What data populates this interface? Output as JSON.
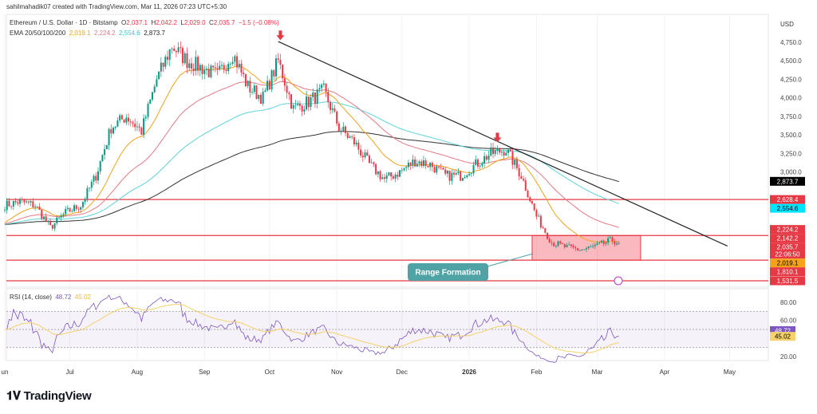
{
  "header": {
    "credit": "sahilmahadik07 created with TradingView.com, Mar 11, 2026 07:23 UTC+5:30",
    "symbol": "Ethereum / U.S. Dollar · 1D · Bitstamp",
    "o_label": "O",
    "o": "2,037.1",
    "h_label": "H",
    "h": "2,042.2",
    "l_label": "L",
    "l": "2,029.0",
    "c_label": "C",
    "c": "2,035.7",
    "change": "−1.5 (−0.08%)",
    "ema_label": "EMA 20/50/100/200",
    "ema_values": [
      "2,019.1",
      "2,224.2",
      "2,554.6",
      "2,873.7"
    ]
  },
  "currency": "USD",
  "colors": {
    "up": "#089981",
    "down": "#f23645",
    "ema20": "#f7a21b",
    "ema50": "#e57a86",
    "ema100": "#5fd3dc",
    "ema200": "#333333",
    "level": "#e53945",
    "rsi": "#7e57c2",
    "rsi_ma": "#f5d26b",
    "annotation": "#4fa3a5"
  },
  "price_axis": [
    "4,750.0",
    "4,500.0",
    "4,250.0",
    "4,000.0",
    "3,750.0",
    "3,500.0",
    "3,250.0",
    "3,000.0"
  ],
  "price_tags": [
    {
      "value": "2,873.7",
      "price": 2873.7,
      "bg": "#000000",
      "fg": "#ffffff"
    },
    {
      "value": "2,628.4",
      "price": 2628.4,
      "bg": "#e53945",
      "fg": "#ffffff"
    },
    {
      "value": "2,554.6",
      "price": 2554.6,
      "bg": "#00e5ff",
      "fg": "#000000"
    },
    {
      "value": "2,224.2",
      "price": 2224.2,
      "bg": "#e53945",
      "fg": "#ffffff"
    },
    {
      "value": "2,142.2",
      "price": 2142.2,
      "bg": "#e53945",
      "fg": "#ffffff"
    },
    {
      "value": "2,035.7",
      "price": 2035.7,
      "bg": "#e53945",
      "fg": "#ffffff",
      "sub": "22:06:50"
    },
    {
      "value": "2,019.1",
      "price": 2019.1,
      "bg": "#f7a21b",
      "fg": "#000000"
    },
    {
      "value": "1,810.1",
      "price": 1810.1,
      "bg": "#e53945",
      "fg": "#ffffff"
    },
    {
      "value": "1,531.5",
      "price": 1531.5,
      "bg": "#e53945",
      "fg": "#ffffff"
    }
  ],
  "levels": [
    2628.4,
    2142.2,
    1810.1,
    1531.5
  ],
  "annotation": {
    "label": "Range Formation"
  },
  "rsi": {
    "label": "RSI (14, close)",
    "value": "48.72",
    "ma": "45.02",
    "axis": [
      "80.00",
      "60.00",
      "20.00"
    ],
    "bands": [
      70,
      50,
      30
    ]
  },
  "chart_data": {
    "type": "candlestick",
    "title": "Ethereum / U.S. Dollar · 1D · Bitstamp",
    "x_unit": "days since 2025-06-01",
    "x_ticks": [
      {
        "label": "un",
        "d": 0
      },
      {
        "label": "Jul",
        "d": 30
      },
      {
        "label": "Aug",
        "d": 61
      },
      {
        "label": "Sep",
        "d": 92
      },
      {
        "label": "Oct",
        "d": 122
      },
      {
        "label": "Nov",
        "d": 153
      },
      {
        "label": "Dec",
        "d": 183
      },
      {
        "label": "2026",
        "d": 214
      },
      {
        "label": "Feb",
        "d": 245
      },
      {
        "label": "Mar",
        "d": 273
      },
      {
        "label": "Apr",
        "d": 304
      },
      {
        "label": "May",
        "d": 334
      }
    ],
    "ylim": [
      1400,
      4900
    ],
    "approx_closes": [
      [
        0,
        2550
      ],
      [
        7,
        2600
      ],
      [
        14,
        2550
      ],
      [
        21,
        2250
      ],
      [
        28,
        2450
      ],
      [
        35,
        2550
      ],
      [
        42,
        2950
      ],
      [
        49,
        3600
      ],
      [
        56,
        3750
      ],
      [
        63,
        3550
      ],
      [
        70,
        4250
      ],
      [
        77,
        4700
      ],
      [
        84,
        4500
      ],
      [
        91,
        4400
      ],
      [
        98,
        4300
      ],
      [
        105,
        4600
      ],
      [
        112,
        4150
      ],
      [
        119,
        4000
      ],
      [
        126,
        4500
      ],
      [
        133,
        3850
      ],
      [
        140,
        3950
      ],
      [
        147,
        4100
      ],
      [
        154,
        3600
      ],
      [
        161,
        3400
      ],
      [
        168,
        3100
      ],
      [
        175,
        2900
      ],
      [
        182,
        3000
      ],
      [
        189,
        3150
      ],
      [
        196,
        3100
      ],
      [
        203,
        2950
      ],
      [
        210,
        2950
      ],
      [
        217,
        3100
      ],
      [
        224,
        3250
      ],
      [
        231,
        3300
      ],
      [
        238,
        2950
      ],
      [
        245,
        2400
      ],
      [
        252,
        2050
      ],
      [
        259,
        1980
      ],
      [
        266,
        1950
      ],
      [
        273,
        2000
      ],
      [
        280,
        2080
      ],
      [
        283,
        2035.7
      ]
    ],
    "trendline": [
      [
        126,
        4760
      ],
      [
        333,
        2000
      ]
    ],
    "range_box": {
      "d": [
        243,
        293
      ],
      "price": [
        1810.1,
        2142.2
      ]
    },
    "arrows": [
      {
        "d": 127,
        "price": 4780
      },
      {
        "d": 227,
        "price": 3400
      }
    ]
  },
  "footer": {
    "logo": "TradingView"
  }
}
